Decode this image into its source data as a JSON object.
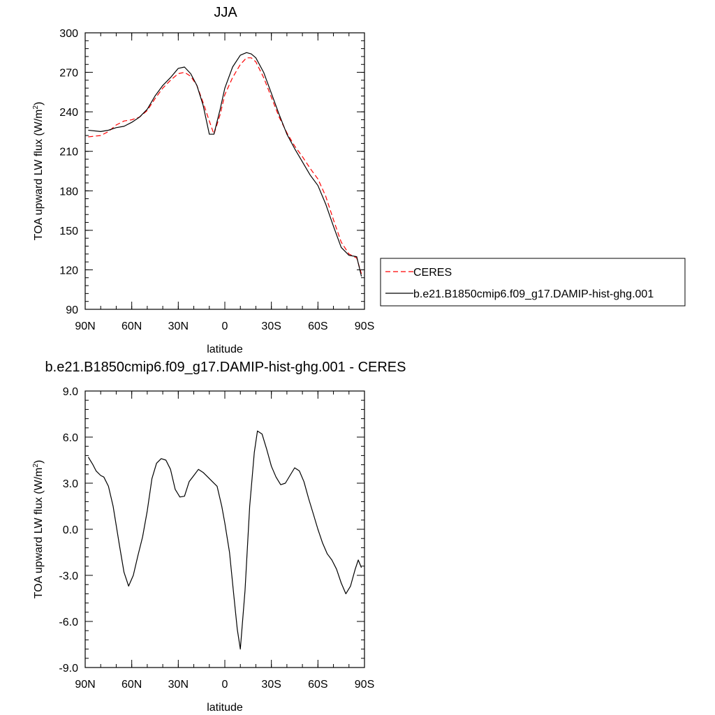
{
  "chart_data": [
    {
      "type": "line",
      "title": "JJA",
      "xlabel": "latitude",
      "ylabel_main": "TOA upward LW flux (W/m",
      "ylabel_sup": "2",
      "ylabel_close": ")",
      "xlim": [
        90,
        -90
      ],
      "ylim": [
        90,
        300
      ],
      "xticks": [
        90,
        60,
        30,
        0,
        -30,
        -60,
        -90
      ],
      "xtick_labels": [
        "90N",
        "60N",
        "30N",
        "0",
        "30S",
        "60S",
        "90S"
      ],
      "yticks": [
        90,
        120,
        150,
        180,
        210,
        240,
        270,
        300
      ],
      "ytick_labels": [
        "90",
        "120",
        "150",
        "180",
        "210",
        "240",
        "270",
        "300"
      ],
      "legend": {
        "placement": "right",
        "entries": [
          "CERES",
          "b.e21.B1850cmip6.f09_g17.DAMIP-hist-ghg.001"
        ]
      },
      "series": [
        {
          "name": "CERES",
          "color": "#ff0000",
          "dash": true,
          "x": [
            88,
            80,
            75,
            70,
            65,
            60,
            55,
            50,
            45,
            40,
            35,
            30,
            26,
            22,
            18,
            14,
            10,
            7,
            3,
            0,
            -5,
            -10,
            -14,
            -17,
            -20,
            -25,
            -30,
            -35,
            -40,
            -45,
            -50,
            -55,
            -60,
            -65,
            -70,
            -75,
            -80,
            -85,
            -88
          ],
          "y": [
            221,
            222,
            225,
            230,
            233,
            234,
            236,
            241,
            250,
            258,
            264,
            269,
            270,
            267,
            260,
            247,
            233,
            223,
            238,
            253,
            266,
            276,
            281,
            281,
            278,
            266,
            251,
            236,
            224,
            214,
            206,
            197,
            189,
            176,
            158,
            141,
            132,
            129,
            117
          ]
        },
        {
          "name": "b.e21.B1850cmip6.f09_g17.DAMIP-hist-ghg.001",
          "color": "#000000",
          "dash": false,
          "x": [
            88,
            80,
            75,
            70,
            65,
            60,
            55,
            50,
            45,
            40,
            35,
            30,
            26,
            22,
            18,
            14,
            10,
            7,
            3,
            0,
            -5,
            -10,
            -14,
            -17,
            -20,
            -25,
            -30,
            -35,
            -40,
            -45,
            -50,
            -55,
            -60,
            -65,
            -70,
            -75,
            -80,
            -85,
            -88
          ],
          "y": [
            226,
            225,
            226,
            228,
            229,
            232,
            236,
            242,
            252,
            260,
            266,
            273,
            274,
            269,
            260,
            245,
            223,
            223,
            242,
            258,
            274,
            283,
            285,
            284,
            281,
            270,
            254,
            238,
            223,
            212,
            202,
            192,
            184,
            170,
            153,
            137,
            131,
            130,
            115
          ]
        }
      ]
    },
    {
      "type": "line",
      "title": "b.e21.B1850cmip6.f09_g17.DAMIP-hist-ghg.001 - CERES",
      "xlabel": "latitude",
      "ylabel_main": "TOA upward LW flux (W/m",
      "ylabel_sup": "2",
      "ylabel_close": ")",
      "xlim": [
        90,
        -90
      ],
      "ylim": [
        -9,
        9
      ],
      "xticks": [
        90,
        60,
        30,
        0,
        -30,
        -60,
        -90
      ],
      "xtick_labels": [
        "90N",
        "60N",
        "30N",
        "0",
        "30S",
        "60S",
        "90S"
      ],
      "yticks": [
        -9,
        -6,
        -3,
        0,
        3,
        6,
        9
      ],
      "ytick_labels": [
        "-9.0",
        "-6.0",
        "-3.0",
        "0.0",
        "3.0",
        "6.0",
        "9.0"
      ],
      "series": [
        {
          "color": "#000000",
          "dash": false,
          "x": [
            88,
            85,
            83,
            80,
            78,
            75,
            72,
            68,
            65,
            62,
            59,
            56,
            53,
            50,
            47,
            44,
            41,
            38,
            35,
            32,
            29,
            26,
            23,
            20,
            17,
            14,
            11,
            8,
            5,
            2,
            0,
            -3,
            -6,
            -8,
            -10,
            -13,
            -16,
            -19,
            -21,
            -24,
            -27,
            -30,
            -33,
            -36,
            -39,
            -42,
            -45,
            -48,
            -51,
            -54,
            -57,
            -60,
            -63,
            -66,
            -69,
            -72,
            -75,
            -78,
            -81,
            -84,
            -86,
            -88
          ],
          "y": [
            4.7,
            4.2,
            3.8,
            3.5,
            3.4,
            2.8,
            1.5,
            -1.0,
            -2.8,
            -3.7,
            -3.0,
            -1.7,
            -0.5,
            1.2,
            3.3,
            4.3,
            4.6,
            4.5,
            3.9,
            2.6,
            2.1,
            2.15,
            3.1,
            3.5,
            3.9,
            3.7,
            3.4,
            3.1,
            2.8,
            1.5,
            0.4,
            -1.5,
            -4.5,
            -6.5,
            -7.8,
            -4.0,
            1.5,
            5.0,
            6.4,
            6.2,
            5.2,
            4.1,
            3.4,
            2.9,
            3.0,
            3.5,
            4.0,
            3.8,
            3.1,
            2.0,
            1.0,
            0.0,
            -0.9,
            -1.6,
            -2.0,
            -2.6,
            -3.5,
            -4.2,
            -3.7,
            -2.6,
            -2.0,
            -2.5
          ]
        }
      ]
    }
  ]
}
